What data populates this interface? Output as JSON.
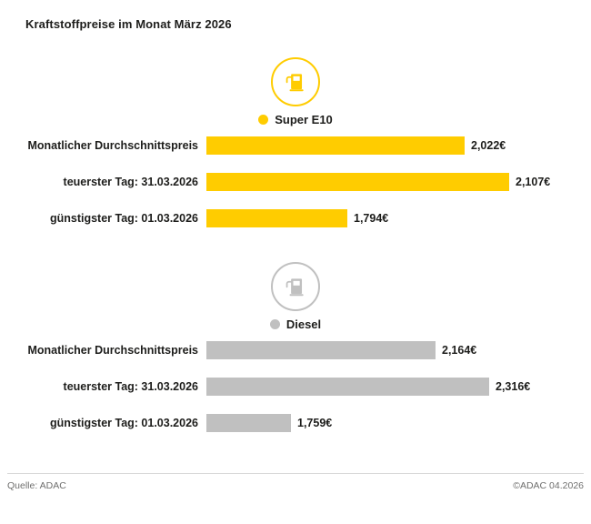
{
  "title": "Kraftstoffpreise im Monat März 2026",
  "footer": {
    "source": "Quelle: ADAC",
    "copyright": "©ADAC 04.2026"
  },
  "colors": {
    "super_e10": "#FFCC00",
    "diesel": "#C0C0C0",
    "text": "#1D1D1B",
    "footer_text": "#6F6F6E",
    "divider": "#D9D9D9"
  },
  "chart_data": {
    "type": "bar",
    "orientation": "horizontal",
    "title": "Kraftstoffpreise im Monat März 2026",
    "xlabel": "",
    "ylabel": "",
    "unit": "€",
    "groups": [
      {
        "name": "Super E10",
        "color": "#FFCC00",
        "icon": "fuel-pump-icon",
        "xlim": [
          1.52,
          2.12
        ],
        "bars": [
          {
            "label": "Monatlicher Durchschnittspreis",
            "value": 2.022,
            "value_label": "2,022€"
          },
          {
            "label": "teuerster Tag: 31.03.2026",
            "value": 2.107,
            "value_label": "2,107€"
          },
          {
            "label": "günstigster Tag: 01.03.2026",
            "value": 1.794,
            "value_label": "1,794€"
          }
        ]
      },
      {
        "name": "Diesel",
        "color": "#C0C0C0",
        "icon": "fuel-pump-icon",
        "xlim": [
          1.52,
          2.39
        ],
        "bars": [
          {
            "label": "Monatlicher Durchschnittspreis",
            "value": 2.164,
            "value_label": "2,164€"
          },
          {
            "label": "teuerster Tag: 31.03.2026",
            "value": 2.316,
            "value_label": "2,316€"
          },
          {
            "label": "günstigster Tag: 01.03.2026",
            "value": 1.759,
            "value_label": "1,759€"
          }
        ]
      }
    ]
  }
}
